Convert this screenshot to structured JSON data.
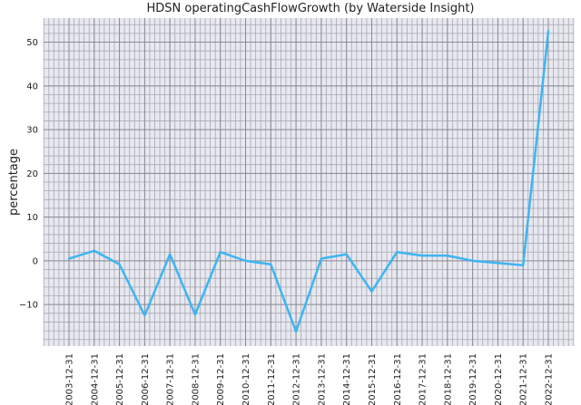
{
  "chart_data": {
    "type": "line",
    "title": "HDSN operatingCashFlowGrowth (by Waterside Insight)",
    "xlabel": "",
    "ylabel": "percentage",
    "x": [
      "2003-12-31",
      "2004-12-31",
      "2005-12-31",
      "2006-12-31",
      "2007-12-31",
      "2008-12-31",
      "2009-12-31",
      "2010-12-31",
      "2011-12-31",
      "2012-12-31",
      "2013-12-31",
      "2014-12-31",
      "2015-12-31",
      "2016-12-31",
      "2017-12-31",
      "2018-12-31",
      "2019-12-31",
      "2020-12-31",
      "2021-12-31",
      "2022-12-31"
    ],
    "series": [
      {
        "name": "",
        "values": [
          0.5,
          2.3,
          -0.8,
          -12.5,
          1.5,
          -12.3,
          2.0,
          0.0,
          -0.8,
          -16.2,
          0.5,
          1.5,
          -7.0,
          2.0,
          1.2,
          1.2,
          0.0,
          -0.5,
          -1.0,
          52.5
        ],
        "color": "#3db5f2"
      }
    ],
    "yticks": [
      -10,
      0,
      10,
      20,
      30,
      40,
      50
    ],
    "ylim": [
      -19.5,
      55.5
    ],
    "grid": true
  }
}
